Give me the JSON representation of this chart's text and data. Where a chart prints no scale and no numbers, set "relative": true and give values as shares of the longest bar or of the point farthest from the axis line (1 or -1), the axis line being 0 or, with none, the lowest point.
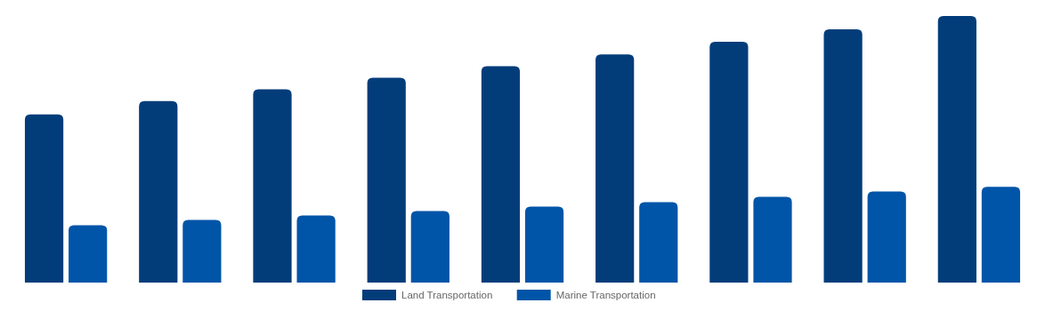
{
  "chart_data": {
    "type": "bar",
    "relative": true,
    "categories": [
      null,
      null,
      null,
      null,
      null,
      null,
      null,
      null,
      null
    ],
    "legend": "bottom",
    "series": [
      {
        "name": "Land Transportation",
        "color": "#023d7a",
        "values": [
          0.631,
          0.681,
          0.725,
          0.768,
          0.812,
          0.856,
          0.903,
          0.95,
          1
        ]
      },
      {
        "name": "Marine Transportation",
        "color": "#0055a8",
        "values": [
          0.215,
          0.235,
          0.252,
          0.268,
          0.285,
          0.302,
          0.322,
          0.342,
          0.359
        ]
      }
    ]
  }
}
